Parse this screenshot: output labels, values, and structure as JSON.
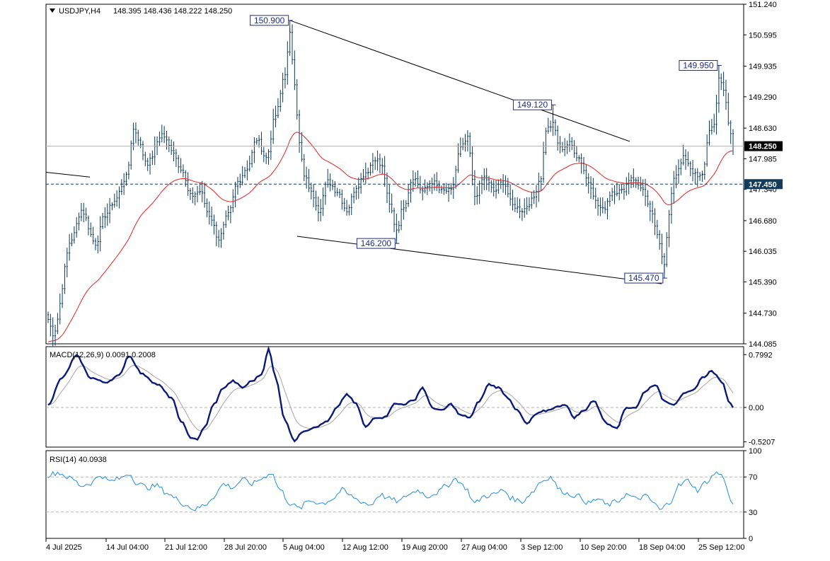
{
  "header": {
    "symbol_timeframe": "USDJPY,H4",
    "ohlc": "148.395 148.436 148.222 148.250"
  },
  "colors": {
    "candles": "#0b3a5c",
    "ma": "#e4231c",
    "macd": "#0a1a7a",
    "signal": "#a6a6a6",
    "rsi": "#1f8fe0",
    "label_border": "#1f2d8a",
    "price_tag": "#000000",
    "level_tag": "#123a5a"
  },
  "chart_data": [
    {
      "type": "candlestick",
      "name": "main",
      "ylim": [
        144.085,
        151.24
      ],
      "y_ticks": [
        "151.240",
        "150.595",
        "149.935",
        "149.290",
        "148.630",
        "147.985",
        "147.340",
        "146.680",
        "146.035",
        "145.390",
        "144.730",
        "144.085"
      ],
      "x_ticks": [
        "4 Jul 2025",
        "14 Jul 04:00",
        "21 Jul 12:00",
        "28 Jul 20:00",
        "5 Aug 04:00",
        "12 Aug 12:00",
        "19 Aug 20:00",
        "27 Aug 04:00",
        "3 Sep 12:00",
        "10 Sep 20:00",
        "18 Sep 04:00",
        "25 Sep 12:00"
      ],
      "bar_count": 290,
      "anchors": [
        {
          "i": 0,
          "v": 144.6
        },
        {
          "i": 2,
          "v": 144.3
        },
        {
          "i": 10,
          "v": 146.3
        },
        {
          "i": 14,
          "v": 146.9
        },
        {
          "i": 20,
          "v": 146.2
        },
        {
          "i": 24,
          "v": 146.8
        },
        {
          "i": 28,
          "v": 147.1
        },
        {
          "i": 33,
          "v": 147.6
        },
        {
          "i": 36,
          "v": 148.6
        },
        {
          "i": 42,
          "v": 147.9
        },
        {
          "i": 48,
          "v": 148.5
        },
        {
          "i": 52,
          "v": 148.2
        },
        {
          "i": 56,
          "v": 147.8
        },
        {
          "i": 60,
          "v": 147.2
        },
        {
          "i": 64,
          "v": 147.3
        },
        {
          "i": 68,
          "v": 146.8
        },
        {
          "i": 72,
          "v": 146.3
        },
        {
          "i": 76,
          "v": 146.8
        },
        {
          "i": 80,
          "v": 147.5
        },
        {
          "i": 84,
          "v": 147.8
        },
        {
          "i": 88,
          "v": 148.4
        },
        {
          "i": 92,
          "v": 148.0
        },
        {
          "i": 96,
          "v": 148.9
        },
        {
          "i": 100,
          "v": 149.8
        },
        {
          "i": 102,
          "v": 150.6
        },
        {
          "i": 104,
          "v": 149.6
        },
        {
          "i": 106,
          "v": 148.3
        },
        {
          "i": 108,
          "v": 147.6
        },
        {
          "i": 112,
          "v": 147.2
        },
        {
          "i": 114,
          "v": 146.9
        },
        {
          "i": 118,
          "v": 147.5
        },
        {
          "i": 122,
          "v": 147.3
        },
        {
          "i": 126,
          "v": 146.9
        },
        {
          "i": 130,
          "v": 147.4
        },
        {
          "i": 134,
          "v": 147.7
        },
        {
          "i": 138,
          "v": 148.0
        },
        {
          "i": 141,
          "v": 147.8
        },
        {
          "i": 144,
          "v": 147.0
        },
        {
          "i": 147,
          "v": 146.5
        },
        {
          "i": 150,
          "v": 147.0
        },
        {
          "i": 154,
          "v": 147.6
        },
        {
          "i": 158,
          "v": 147.3
        },
        {
          "i": 162,
          "v": 147.5
        },
        {
          "i": 166,
          "v": 147.3
        },
        {
          "i": 170,
          "v": 147.3
        },
        {
          "i": 174,
          "v": 148.2
        },
        {
          "i": 177,
          "v": 148.4
        },
        {
          "i": 180,
          "v": 147.2
        },
        {
          "i": 184,
          "v": 147.6
        },
        {
          "i": 188,
          "v": 147.3
        },
        {
          "i": 192,
          "v": 147.5
        },
        {
          "i": 196,
          "v": 147.0
        },
        {
          "i": 200,
          "v": 146.9
        },
        {
          "i": 204,
          "v": 147.1
        },
        {
          "i": 208,
          "v": 147.6
        },
        {
          "i": 210,
          "v": 148.6
        },
        {
          "i": 213,
          "v": 148.7
        },
        {
          "i": 216,
          "v": 148.2
        },
        {
          "i": 220,
          "v": 148.3
        },
        {
          "i": 224,
          "v": 148.0
        },
        {
          "i": 228,
          "v": 147.5
        },
        {
          "i": 232,
          "v": 147.0
        },
        {
          "i": 234,
          "v": 146.9
        },
        {
          "i": 238,
          "v": 147.3
        },
        {
          "i": 242,
          "v": 147.3
        },
        {
          "i": 246,
          "v": 147.6
        },
        {
          "i": 250,
          "v": 147.4
        },
        {
          "i": 254,
          "v": 146.9
        },
        {
          "i": 257,
          "v": 146.4
        },
        {
          "i": 260,
          "v": 145.8
        },
        {
          "i": 262,
          "v": 146.8
        },
        {
          "i": 264,
          "v": 147.6
        },
        {
          "i": 268,
          "v": 148.0
        },
        {
          "i": 272,
          "v": 147.7
        },
        {
          "i": 276,
          "v": 147.6
        },
        {
          "i": 279,
          "v": 148.6
        },
        {
          "i": 281,
          "v": 148.7
        },
        {
          "i": 283,
          "v": 149.7
        },
        {
          "i": 285,
          "v": 149.4
        },
        {
          "i": 288,
          "v": 148.5
        },
        {
          "i": 289,
          "v": 148.25
        }
      ],
      "ma_start": 144.1,
      "ma_end": 148.4,
      "trendlines": [
        {
          "x1": "28 Jul 20:00",
          "y1": 150.9,
          "x2": "15 Sep",
          "y2": 148.35
        },
        {
          "x1": "8 Aug",
          "y1": 146.35,
          "x2": "21 Sep",
          "y2": 145.35
        },
        {
          "x1": "4 Jul 2025",
          "y1": 147.7,
          "x2": "9 Jul",
          "y2": 147.6
        }
      ],
      "annotations": [
        "150.900",
        "149.120",
        "149.950",
        "146.200",
        "145.470"
      ],
      "hlines": [
        {
          "label": "148.250",
          "value": 148.25,
          "style": "solid"
        },
        {
          "label": "147.450",
          "value": 147.45,
          "style": "dashed"
        }
      ]
    },
    {
      "type": "line",
      "name": "macd",
      "label": "MACD(12,26,9) 0.0091 0.2008",
      "ylim": [
        -0.6,
        0.92
      ],
      "y_ticks": [
        "0.7992",
        "0.00",
        "-0.5207"
      ],
      "anchors": [
        {
          "i": 0,
          "v": 0.05
        },
        {
          "i": 6,
          "v": 0.45
        },
        {
          "i": 12,
          "v": 0.78
        },
        {
          "i": 18,
          "v": 0.45
        },
        {
          "i": 24,
          "v": 0.38
        },
        {
          "i": 30,
          "v": 0.48
        },
        {
          "i": 34,
          "v": 0.78
        },
        {
          "i": 40,
          "v": 0.5
        },
        {
          "i": 46,
          "v": 0.35
        },
        {
          "i": 52,
          "v": 0.15
        },
        {
          "i": 56,
          "v": -0.2
        },
        {
          "i": 60,
          "v": -0.45
        },
        {
          "i": 63,
          "v": -0.48
        },
        {
          "i": 66,
          "v": -0.3
        },
        {
          "i": 70,
          "v": 0.05
        },
        {
          "i": 74,
          "v": 0.3
        },
        {
          "i": 78,
          "v": 0.4
        },
        {
          "i": 82,
          "v": 0.3
        },
        {
          "i": 86,
          "v": 0.4
        },
        {
          "i": 90,
          "v": 0.5
        },
        {
          "i": 93,
          "v": 0.88
        },
        {
          "i": 96,
          "v": 0.45
        },
        {
          "i": 100,
          "v": -0.2
        },
        {
          "i": 104,
          "v": -0.5
        },
        {
          "i": 108,
          "v": -0.35
        },
        {
          "i": 114,
          "v": -0.28
        },
        {
          "i": 118,
          "v": -0.2
        },
        {
          "i": 122,
          "v": 0.0
        },
        {
          "i": 126,
          "v": 0.2
        },
        {
          "i": 130,
          "v": 0.05
        },
        {
          "i": 134,
          "v": -0.3
        },
        {
          "i": 138,
          "v": -0.15
        },
        {
          "i": 142,
          "v": -0.15
        },
        {
          "i": 146,
          "v": 0.05
        },
        {
          "i": 150,
          "v": 0.05
        },
        {
          "i": 154,
          "v": 0.1
        },
        {
          "i": 158,
          "v": 0.3
        },
        {
          "i": 162,
          "v": 0.0
        },
        {
          "i": 166,
          "v": -0.05
        },
        {
          "i": 170,
          "v": 0.05
        },
        {
          "i": 174,
          "v": -0.12
        },
        {
          "i": 178,
          "v": -0.15
        },
        {
          "i": 182,
          "v": 0.1
        },
        {
          "i": 186,
          "v": 0.35
        },
        {
          "i": 190,
          "v": 0.3
        },
        {
          "i": 194,
          "v": 0.15
        },
        {
          "i": 198,
          "v": -0.05
        },
        {
          "i": 202,
          "v": -0.25
        },
        {
          "i": 206,
          "v": -0.1
        },
        {
          "i": 210,
          "v": -0.05
        },
        {
          "i": 214,
          "v": 0.0
        },
        {
          "i": 218,
          "v": 0.05
        },
        {
          "i": 222,
          "v": -0.15
        },
        {
          "i": 226,
          "v": -0.05
        },
        {
          "i": 230,
          "v": 0.1
        },
        {
          "i": 236,
          "v": -0.25
        },
        {
          "i": 240,
          "v": -0.3
        },
        {
          "i": 244,
          "v": 0.0
        },
        {
          "i": 248,
          "v": 0.0
        },
        {
          "i": 252,
          "v": 0.25
        },
        {
          "i": 256,
          "v": 0.35
        },
        {
          "i": 260,
          "v": 0.1
        },
        {
          "i": 264,
          "v": 0.05
        },
        {
          "i": 268,
          "v": 0.2
        },
        {
          "i": 272,
          "v": 0.25
        },
        {
          "i": 276,
          "v": 0.45
        },
        {
          "i": 280,
          "v": 0.55
        },
        {
          "i": 284,
          "v": 0.4
        },
        {
          "i": 288,
          "v": 0.05
        },
        {
          "i": 289,
          "v": 0.01
        }
      ]
    },
    {
      "type": "line",
      "name": "rsi",
      "label": "RSI(14) 40.0938",
      "ylim": [
        0,
        100
      ],
      "y_ticks": [
        "100",
        "70",
        "30",
        "0"
      ],
      "levels": [
        70,
        30
      ],
      "anchors": [
        {
          "i": 0,
          "v": 72
        },
        {
          "i": 4,
          "v": 75
        },
        {
          "i": 10,
          "v": 68
        },
        {
          "i": 14,
          "v": 60
        },
        {
          "i": 18,
          "v": 63
        },
        {
          "i": 22,
          "v": 72
        },
        {
          "i": 26,
          "v": 65
        },
        {
          "i": 30,
          "v": 68
        },
        {
          "i": 34,
          "v": 74
        },
        {
          "i": 38,
          "v": 62
        },
        {
          "i": 42,
          "v": 58
        },
        {
          "i": 46,
          "v": 60
        },
        {
          "i": 50,
          "v": 52
        },
        {
          "i": 54,
          "v": 45
        },
        {
          "i": 58,
          "v": 38
        },
        {
          "i": 62,
          "v": 33
        },
        {
          "i": 66,
          "v": 38
        },
        {
          "i": 70,
          "v": 48
        },
        {
          "i": 74,
          "v": 62
        },
        {
          "i": 78,
          "v": 58
        },
        {
          "i": 82,
          "v": 67
        },
        {
          "i": 86,
          "v": 62
        },
        {
          "i": 90,
          "v": 68
        },
        {
          "i": 94,
          "v": 75
        },
        {
          "i": 98,
          "v": 55
        },
        {
          "i": 102,
          "v": 40
        },
        {
          "i": 106,
          "v": 34
        },
        {
          "i": 110,
          "v": 43
        },
        {
          "i": 116,
          "v": 40
        },
        {
          "i": 120,
          "v": 45
        },
        {
          "i": 124,
          "v": 55
        },
        {
          "i": 128,
          "v": 48
        },
        {
          "i": 132,
          "v": 42
        },
        {
          "i": 136,
          "v": 38
        },
        {
          "i": 140,
          "v": 50
        },
        {
          "i": 144,
          "v": 45
        },
        {
          "i": 148,
          "v": 42
        },
        {
          "i": 152,
          "v": 50
        },
        {
          "i": 156,
          "v": 55
        },
        {
          "i": 160,
          "v": 48
        },
        {
          "i": 164,
          "v": 52
        },
        {
          "i": 168,
          "v": 60
        },
        {
          "i": 172,
          "v": 68
        },
        {
          "i": 176,
          "v": 58
        },
        {
          "i": 180,
          "v": 40
        },
        {
          "i": 184,
          "v": 48
        },
        {
          "i": 188,
          "v": 50
        },
        {
          "i": 192,
          "v": 55
        },
        {
          "i": 196,
          "v": 45
        },
        {
          "i": 200,
          "v": 42
        },
        {
          "i": 204,
          "v": 52
        },
        {
          "i": 208,
          "v": 65
        },
        {
          "i": 212,
          "v": 70
        },
        {
          "i": 216,
          "v": 55
        },
        {
          "i": 220,
          "v": 50
        },
        {
          "i": 224,
          "v": 48
        },
        {
          "i": 228,
          "v": 40
        },
        {
          "i": 232,
          "v": 45
        },
        {
          "i": 236,
          "v": 38
        },
        {
          "i": 240,
          "v": 42
        },
        {
          "i": 244,
          "v": 50
        },
        {
          "i": 248,
          "v": 45
        },
        {
          "i": 252,
          "v": 48
        },
        {
          "i": 256,
          "v": 40
        },
        {
          "i": 258,
          "v": 32
        },
        {
          "i": 262,
          "v": 40
        },
        {
          "i": 266,
          "v": 60
        },
        {
          "i": 270,
          "v": 66
        },
        {
          "i": 274,
          "v": 55
        },
        {
          "i": 278,
          "v": 65
        },
        {
          "i": 282,
          "v": 75
        },
        {
          "i": 285,
          "v": 70
        },
        {
          "i": 288,
          "v": 42
        },
        {
          "i": 289,
          "v": 40
        }
      ]
    }
  ]
}
